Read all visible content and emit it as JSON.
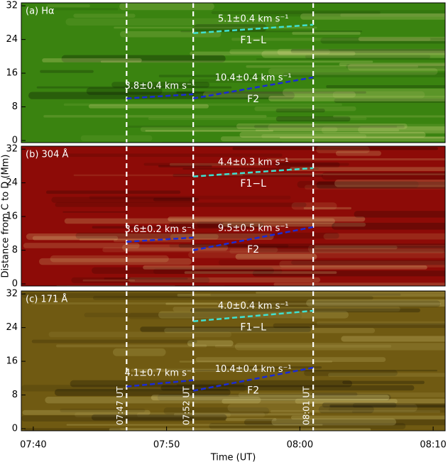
{
  "chart_data": [
    {
      "type": "time-distance",
      "label": "(a) Hα",
      "color": "#3f8f12",
      "xlim": [
        459.1,
        490.9
      ],
      "ylim": [
        -0.5,
        32.7
      ],
      "yticks": [
        0,
        8,
        16,
        24,
        32
      ],
      "markers": [
        467,
        472,
        481
      ],
      "fits": [
        {
          "name": "F1−L",
          "label": "5.1±0.4 km s⁻¹",
          "color": "#40e0d0",
          "x": [
            472,
            481
          ],
          "y": [
            25.5,
            27.5
          ]
        },
        {
          "label": "3.8±0.4 km s⁻¹",
          "color": "#1a2bd6",
          "x": [
            467,
            472
          ],
          "y": [
            10,
            11
          ]
        },
        {
          "name": "F2",
          "label": "10.4±0.4 km s⁻¹",
          "color": "#1a2bd6",
          "x": [
            472,
            481
          ],
          "y": [
            10,
            15
          ]
        }
      ]
    },
    {
      "type": "time-distance",
      "label": "(b) 304 Å",
      "color": "#9a0d08",
      "ylabel": "Distance from C to D (Mm)",
      "xlim": [
        459.1,
        490.9
      ],
      "ylim": [
        -0.5,
        32.7
      ],
      "yticks": [
        0,
        8,
        16,
        24,
        32
      ],
      "markers": [
        467,
        472,
        481
      ],
      "fits": [
        {
          "name": "F1−L",
          "label": "4.4±0.3 km s⁻¹",
          "color": "#40e0d0",
          "x": [
            472,
            481
          ],
          "y": [
            25.5,
            27.5
          ]
        },
        {
          "label": "3.6±0.2 km s⁻¹",
          "color": "#1a2bd6",
          "x": [
            467,
            472
          ],
          "y": [
            10,
            11
          ]
        },
        {
          "name": "F2",
          "label": "9.5±0.5 km s⁻¹",
          "color": "#1a2bd6",
          "x": [
            472,
            481
          ],
          "y": [
            8,
            13.5
          ]
        }
      ]
    },
    {
      "type": "time-distance",
      "label": "(c) 171 Å",
      "color": "#7a6214",
      "xlabel": "Time (UT)",
      "xlim": [
        459.1,
        490.9
      ],
      "ylim": [
        -0.5,
        32.7
      ],
      "yticks": [
        0,
        8,
        16,
        24,
        32
      ],
      "xticks": [
        {
          "value": 460,
          "label": "07:40"
        },
        {
          "value": 470,
          "label": "07:50"
        },
        {
          "value": 480,
          "label": "08:00"
        },
        {
          "value": 490,
          "label": "08:10"
        }
      ],
      "markers": [
        467,
        472,
        481
      ],
      "marker_labels": [
        "07:47 UT",
        "07:52 UT",
        "08:01 UT"
      ],
      "fits": [
        {
          "name": "F1−L",
          "label": "4.0±0.4 km s⁻¹",
          "color": "#40e0d0",
          "x": [
            472,
            481
          ],
          "y": [
            25.5,
            28
          ]
        },
        {
          "label": "4.1±0.7 km s⁻¹",
          "color": "#1a2bd6",
          "x": [
            467,
            472
          ],
          "y": [
            10,
            11.5
          ]
        },
        {
          "name": "F2",
          "label": "10.4±0.4 km s⁻¹",
          "color": "#1a2bd6",
          "x": [
            472,
            481
          ],
          "y": [
            9,
            14.5
          ]
        }
      ]
    }
  ]
}
